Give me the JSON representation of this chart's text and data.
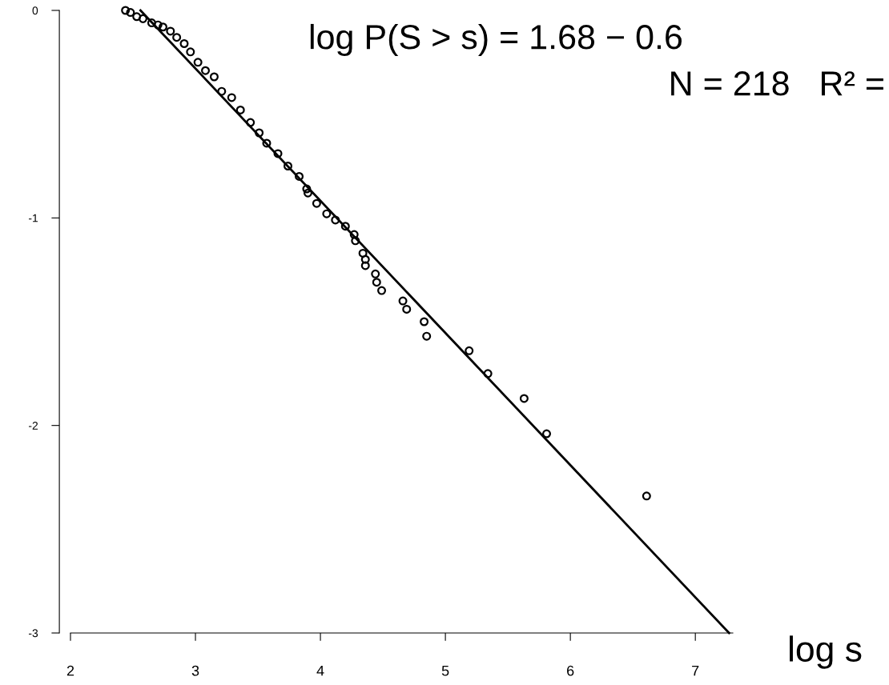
{
  "chart_data": {
    "type": "scatter",
    "xlabel": "log s",
    "annotations": [
      "log P(S > s) = 1.68 − 0.6",
      "N = 218   R² ="
    ],
    "xlim": [
      2,
      7.3
    ],
    "ylim": [
      -3,
      0
    ],
    "xticks": [
      2,
      3,
      4,
      5,
      6,
      7
    ],
    "yticks": [
      0,
      -1,
      -2,
      -3
    ],
    "marker": "circle",
    "grid": false,
    "legend": false,
    "series": [
      {
        "color": "#000000",
        "x": [
          2.44,
          2.48,
          2.53,
          2.58,
          2.65,
          2.7,
          2.74,
          2.8,
          2.85,
          2.91,
          2.96,
          3.02,
          3.08,
          3.15,
          3.21,
          3.29,
          3.36,
          3.44,
          3.51,
          3.57,
          3.66,
          3.74,
          3.83,
          3.89,
          3.9,
          3.97,
          4.05,
          4.12,
          4.2,
          4.27,
          4.28,
          4.34,
          4.36,
          4.36,
          4.44,
          4.45,
          4.49,
          4.66,
          4.69,
          4.83,
          4.85,
          5.19,
          5.34,
          5.63,
          5.81,
          6.61
        ],
        "values": [
          0.0,
          -0.01,
          -0.03,
          -0.04,
          -0.06,
          -0.07,
          -0.08,
          -0.1,
          -0.13,
          -0.16,
          -0.2,
          -0.25,
          -0.29,
          -0.32,
          -0.39,
          -0.42,
          -0.48,
          -0.54,
          -0.59,
          -0.64,
          -0.69,
          -0.75,
          -0.8,
          -0.86,
          -0.88,
          -0.93,
          -0.98,
          -1.01,
          -1.04,
          -1.08,
          -1.11,
          -1.17,
          -1.2,
          -1.23,
          -1.27,
          -1.31,
          -1.35,
          -1.4,
          -1.44,
          -1.5,
          -1.57,
          -1.64,
          -1.75,
          -1.87,
          -2.04,
          -2.34
        ]
      },
      {
        "type": "line",
        "color": "#000000",
        "marker": "none",
        "line_style": "solid",
        "x": [
          2.56,
          7.27
        ],
        "values": [
          0,
          -3
        ]
      }
    ]
  }
}
